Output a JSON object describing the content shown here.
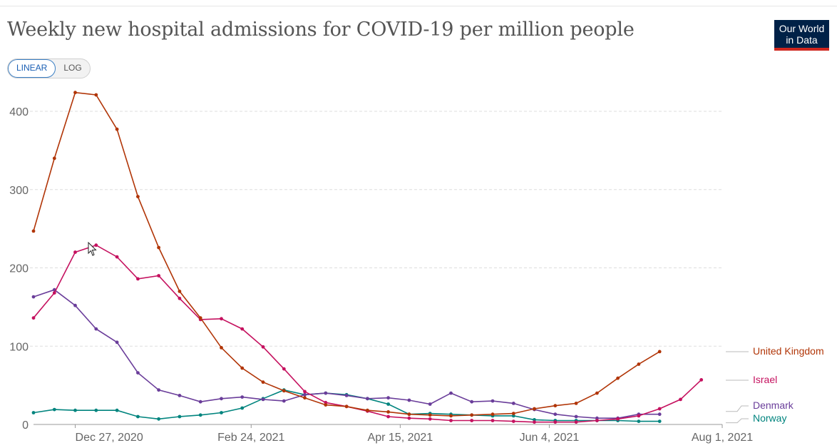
{
  "header": {
    "title": "Weekly new hospital admissions for COVID-19 per million people",
    "logo_line1": "Our World",
    "logo_line2": "in Data"
  },
  "controls": {
    "linear_label": "LINEAR",
    "log_label": "LOG",
    "active": "LINEAR"
  },
  "colors": {
    "grid": "#dddddd",
    "axis": "#999999",
    "logo_bg": "#002147",
    "logo_accent": "#ce261e"
  },
  "chart_data": {
    "type": "line",
    "title": "Weekly new hospital admissions for COVID-19 per million people",
    "xlabel": "",
    "ylabel": "",
    "ylim": [
      0,
      400
    ],
    "yticks": [
      0,
      100,
      200,
      300,
      400
    ],
    "grid": true,
    "legend": "right (line-end labels)",
    "x": [
      "2020-12-13",
      "2020-12-20",
      "2020-12-27",
      "2021-01-03",
      "2021-01-10",
      "2021-01-17",
      "2021-01-24",
      "2021-01-31",
      "2021-02-07",
      "2021-02-14",
      "2021-02-21",
      "2021-02-28",
      "2021-03-07",
      "2021-03-14",
      "2021-03-21",
      "2021-03-28",
      "2021-04-04",
      "2021-04-11",
      "2021-04-18",
      "2021-04-25",
      "2021-05-02",
      "2021-05-09",
      "2021-05-16",
      "2021-05-23",
      "2021-05-30",
      "2021-06-06",
      "2021-06-13",
      "2021-06-20",
      "2021-06-27",
      "2021-07-04",
      "2021-07-11",
      "2021-07-18",
      "2021-07-25",
      "2021-08-01"
    ],
    "x_ticks": [
      {
        "date": "2020-12-27",
        "label": "Dec 27, 2020"
      },
      {
        "date": "2021-02-24",
        "label": "Feb 24, 2021"
      },
      {
        "date": "2021-04-15",
        "label": "Apr 15, 2021"
      },
      {
        "date": "2021-06-04",
        "label": "Jun 4, 2021"
      },
      {
        "date": "2021-08-01",
        "label": "Aug 1, 2021"
      }
    ],
    "series": [
      {
        "name": "United Kingdom",
        "color": "#b13507",
        "values": [
          247,
          340,
          424,
          421,
          377,
          291,
          226,
          170,
          136,
          98,
          72,
          54,
          43,
          34,
          25,
          23,
          18,
          16,
          13,
          12,
          11,
          12,
          13,
          14,
          20,
          24,
          27,
          40,
          59,
          77,
          93,
          null,
          null,
          null
        ]
      },
      {
        "name": "Israel",
        "color": "#c5115f",
        "values": [
          136,
          168,
          220,
          229,
          214,
          186,
          190,
          161,
          134,
          135,
          122,
          99,
          71,
          42,
          28,
          23,
          17,
          10,
          8,
          7,
          5,
          5,
          5,
          4,
          3,
          3,
          3,
          5,
          7,
          11,
          20,
          32,
          57,
          null
        ]
      },
      {
        "name": "Denmark",
        "color": "#6a3d9a",
        "values": [
          163,
          172,
          152,
          122,
          105,
          66,
          44,
          37,
          29,
          33,
          35,
          32,
          30,
          38,
          40,
          37,
          33,
          34,
          31,
          26,
          40,
          29,
          30,
          27,
          19,
          13,
          10,
          8,
          8,
          13,
          13,
          null,
          null,
          null
        ]
      },
      {
        "name": "Norway",
        "color": "#00847e",
        "values": [
          15,
          19,
          18,
          18,
          18,
          10,
          7,
          10,
          12,
          15,
          21,
          33,
          44,
          38,
          40,
          38,
          33,
          26,
          13,
          14,
          13,
          12,
          11,
          11,
          6,
          5,
          5,
          5,
          5,
          4,
          4,
          null,
          null,
          null
        ]
      }
    ]
  }
}
